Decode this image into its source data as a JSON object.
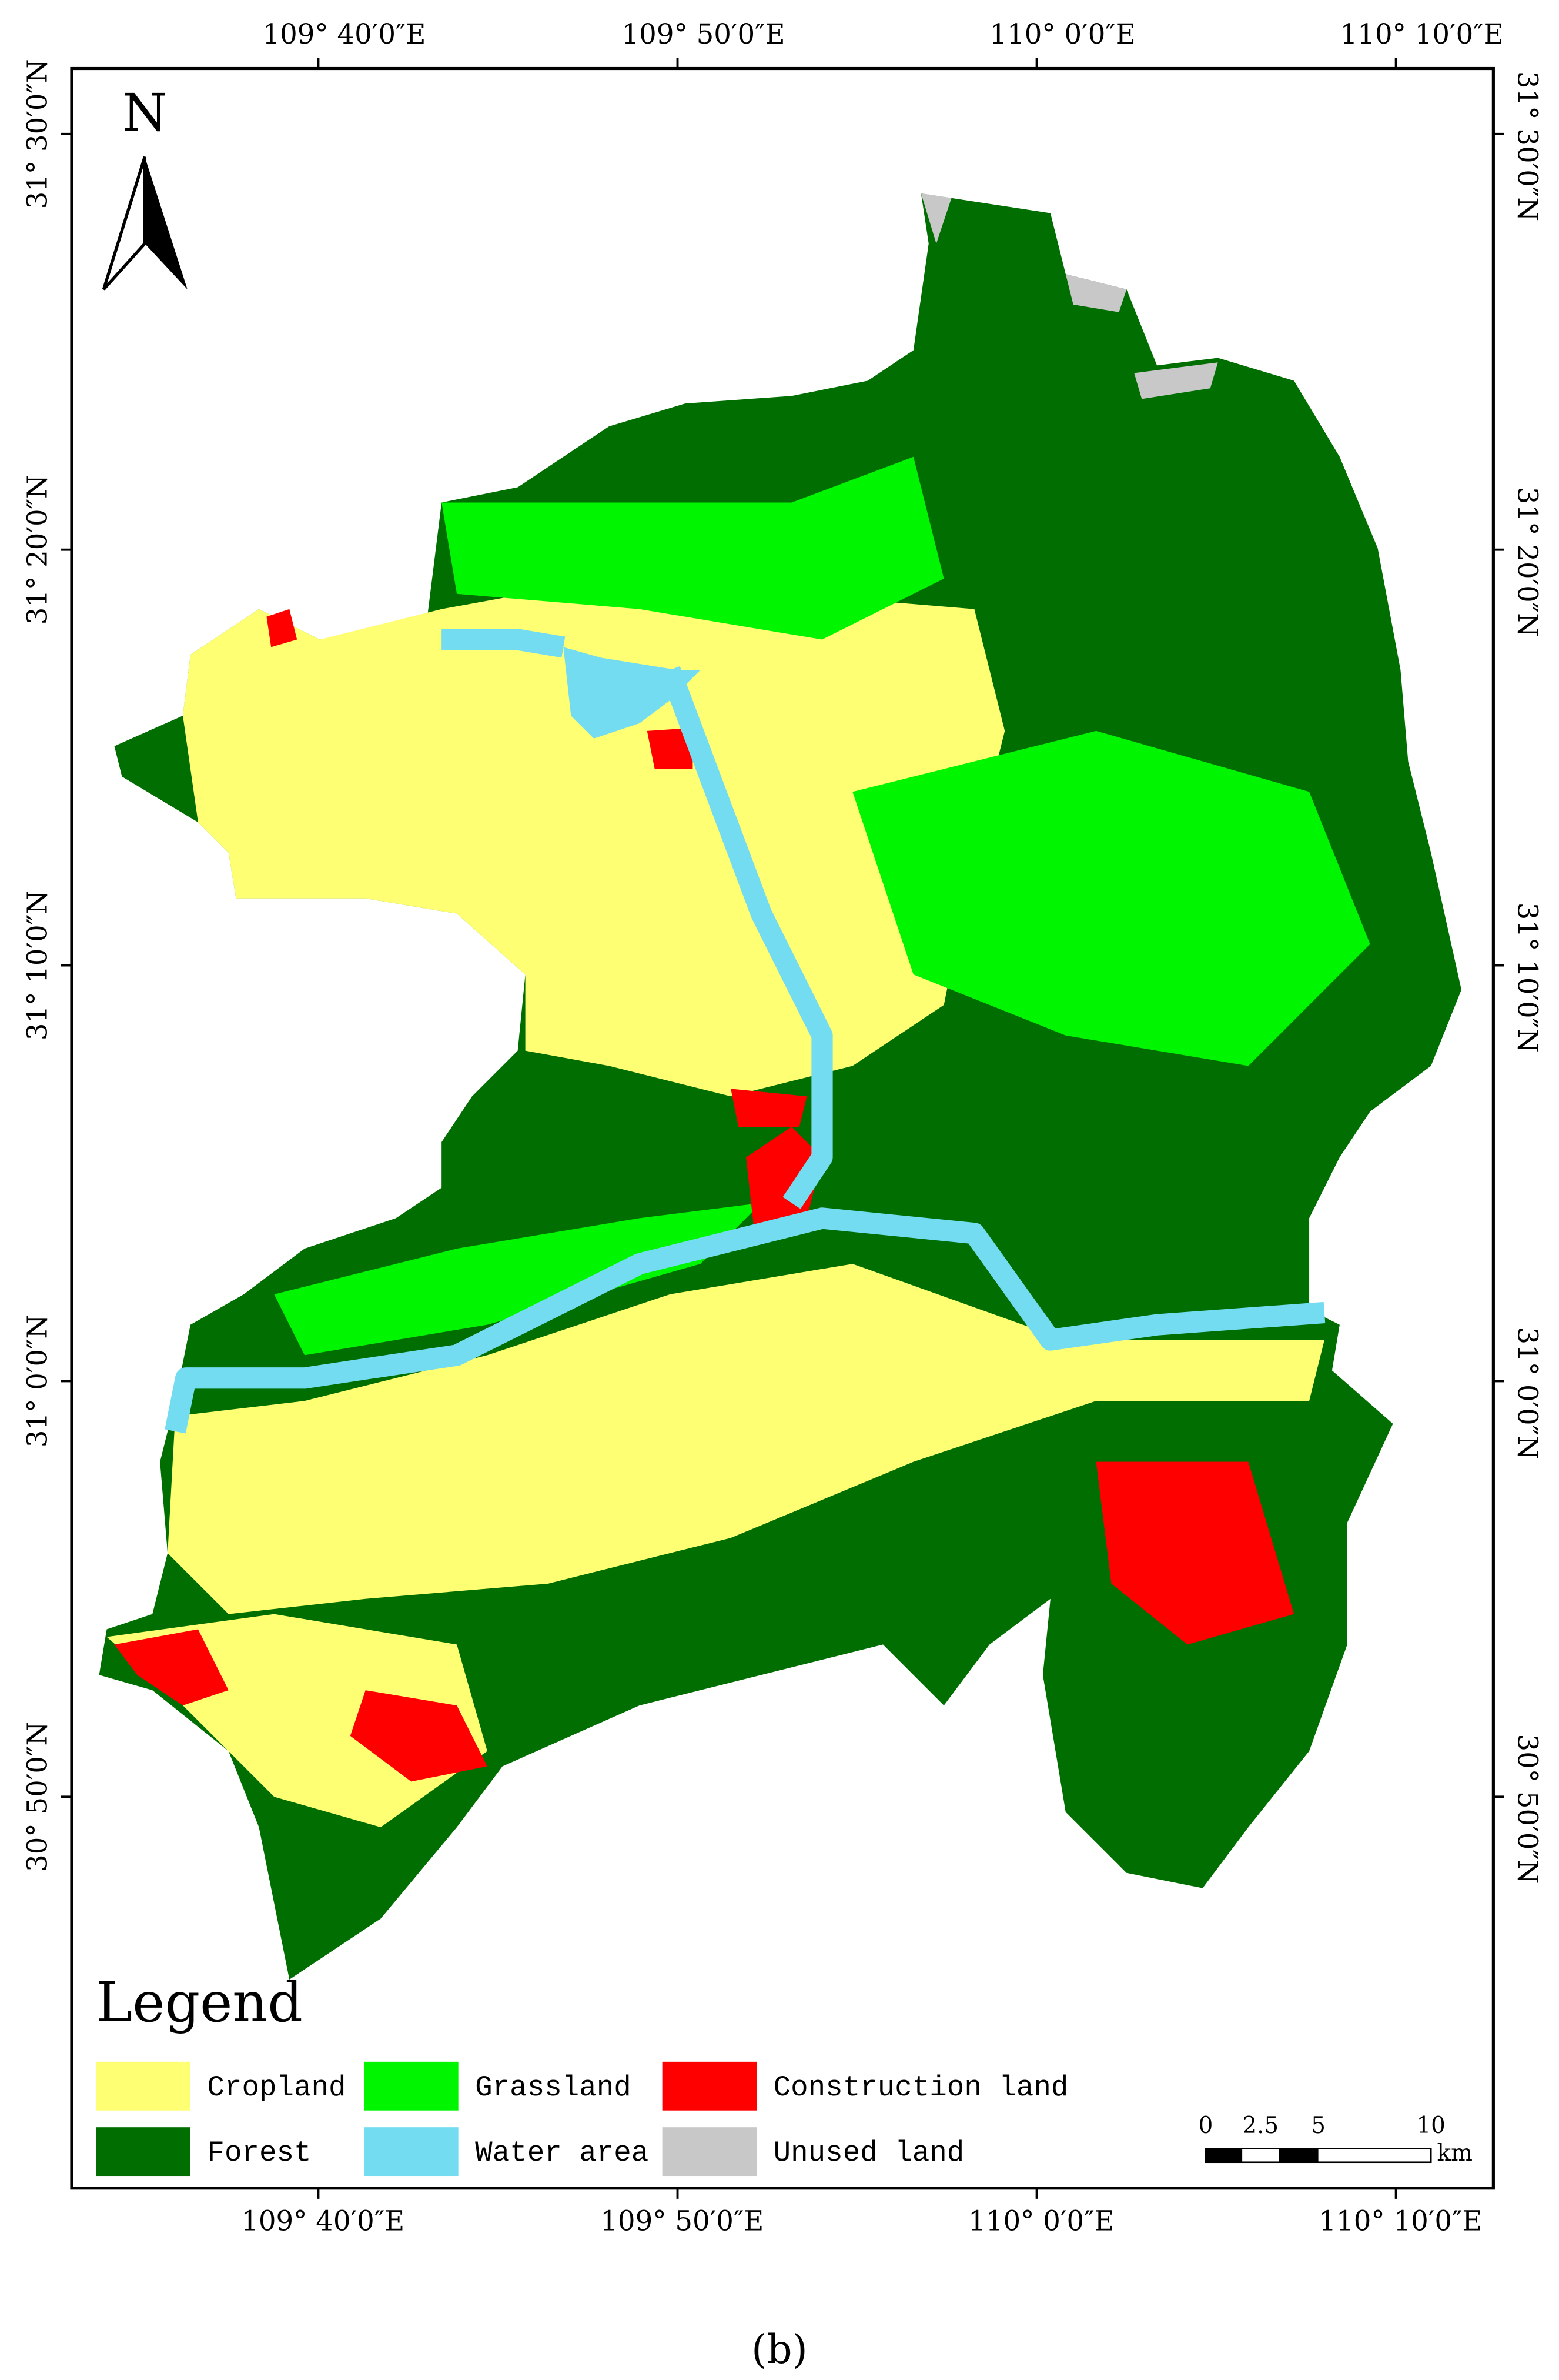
{
  "north_label": "N",
  "longitude_labels": [
    "109° 40′0″E",
    "109° 50′0″E",
    "110° 0′0″E",
    "110° 10′0″E"
  ],
  "latitude_labels": [
    "31° 30′0″N",
    "31° 20′0″N",
    "31° 10′0″N",
    "31° 0′0″N",
    "30° 50′0″N"
  ],
  "legend": {
    "title": "Legend",
    "items": [
      {
        "label": "Cropland",
        "color": "#ffff73"
      },
      {
        "label": "Grassland",
        "color": "#00f500"
      },
      {
        "label": "Construction land",
        "color": "#ff0000"
      },
      {
        "label": "Forest",
        "color": "#006e00"
      },
      {
        "label": "Water area",
        "color": "#73dcf0"
      },
      {
        "label": "Unused land",
        "color": "#c8c8c8"
      }
    ]
  },
  "scale_bar": {
    "labels": [
      "0",
      "2.5",
      "5",
      "10"
    ],
    "unit": "km"
  },
  "caption": "(b)"
}
